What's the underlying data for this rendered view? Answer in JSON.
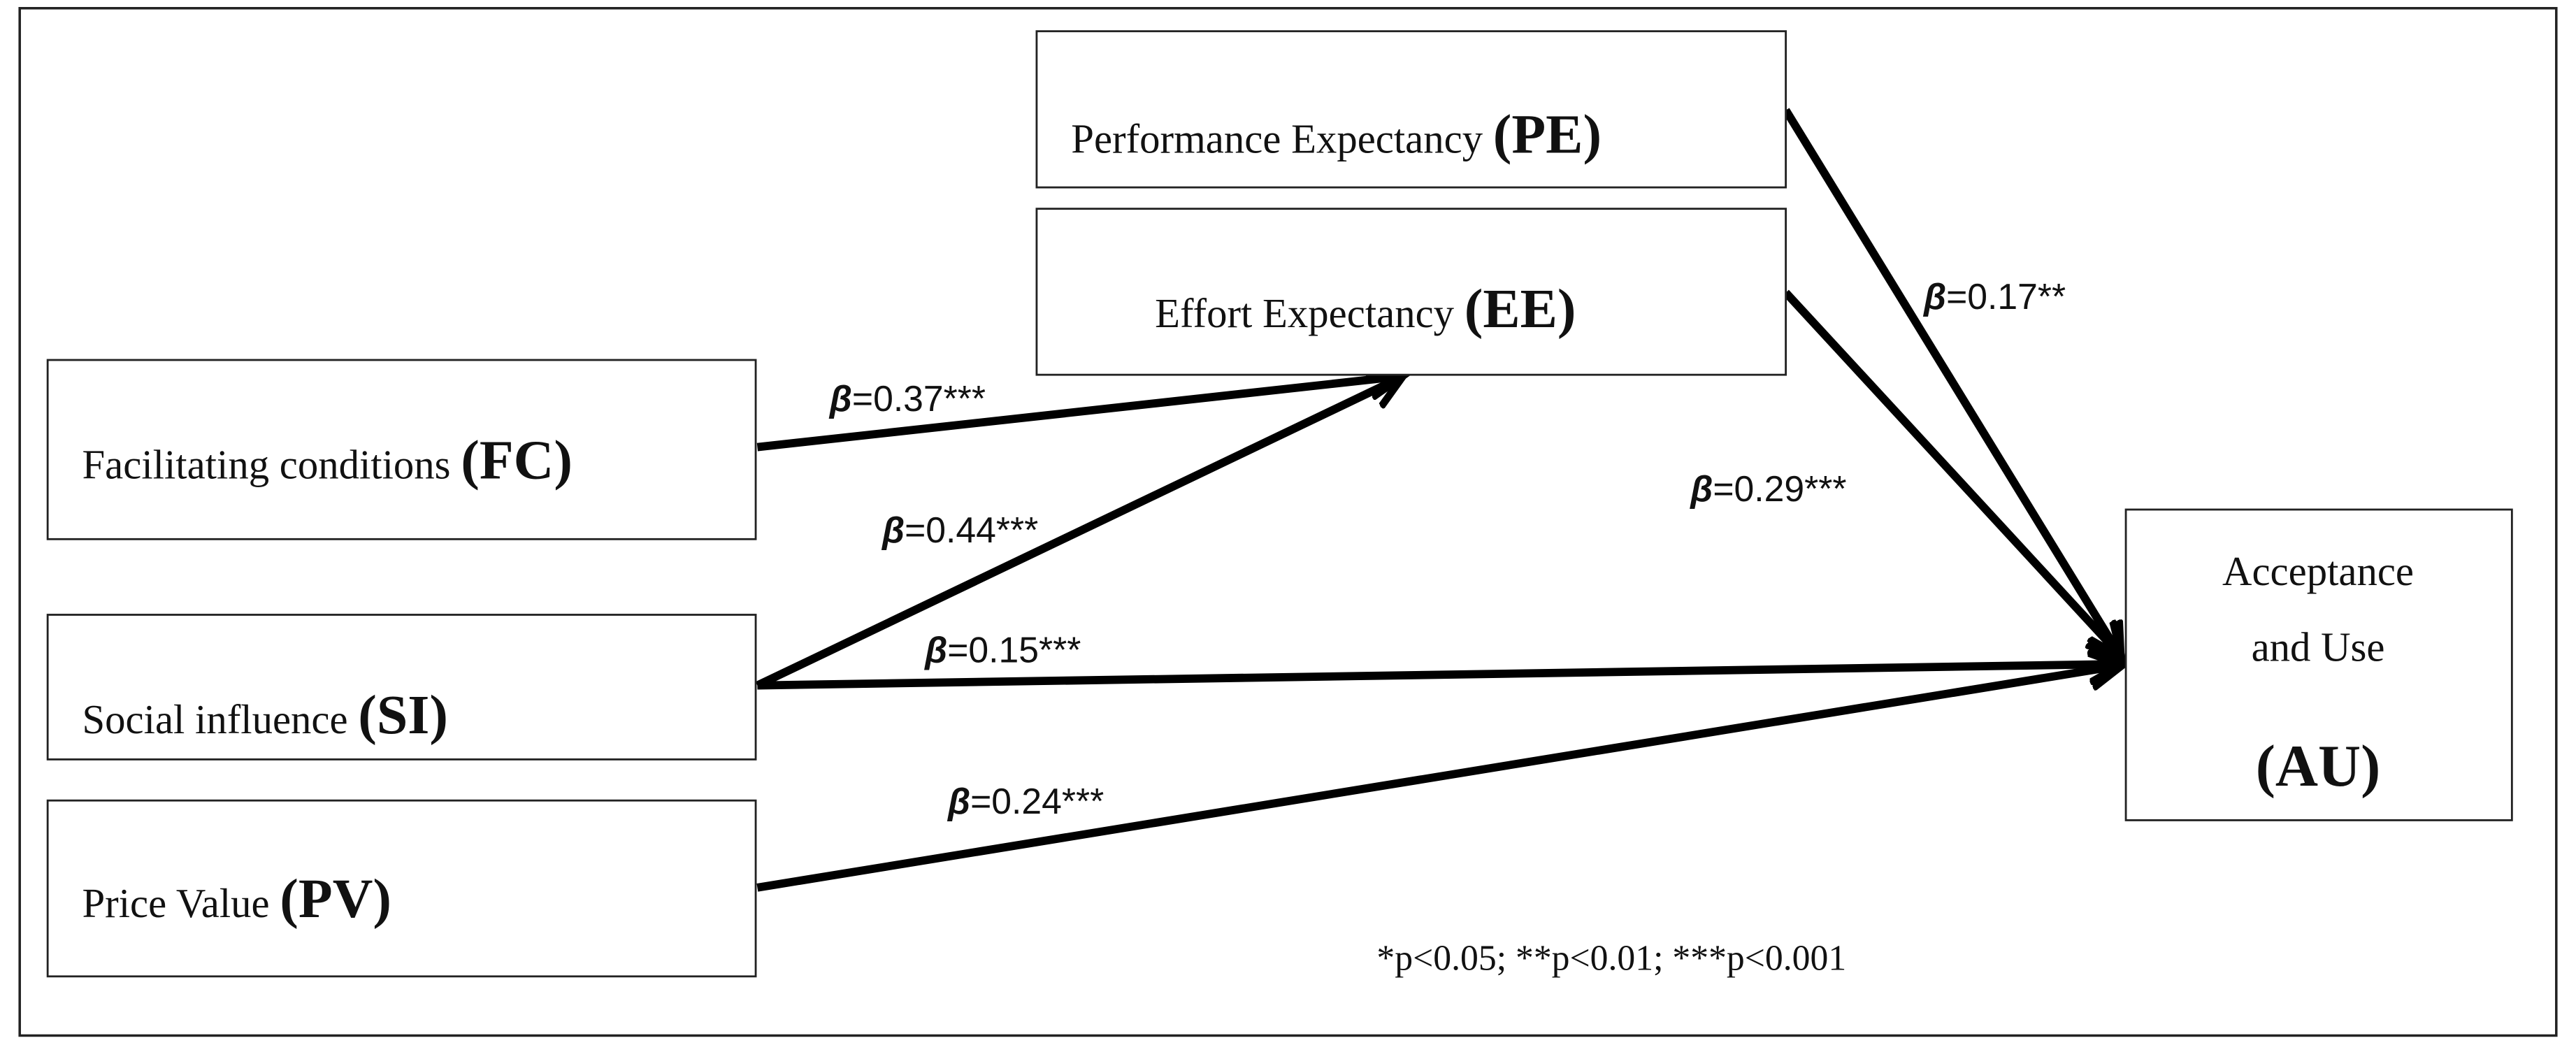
{
  "nodes": [
    {
      "name": "Performance Expectancy",
      "abbr": "(PE)"
    },
    {
      "name": "Effort Expectancy",
      "abbr": "(EE)"
    },
    {
      "name": "Facilitating conditions",
      "abbr": "(FC)"
    },
    {
      "name": "Social influence",
      "abbr": "(SI)"
    },
    {
      "name": "Price Value",
      "abbr": "(PV)"
    },
    {
      "name": [
        "Acceptance",
        "and Use"
      ],
      "abbr": "(AU)"
    }
  ],
  "edges": [
    {
      "symbol": "β",
      "text": "=0.37***"
    },
    {
      "symbol": "β",
      "text": "=0.44***"
    },
    {
      "symbol": "β",
      "text": "=0.15***"
    },
    {
      "symbol": "β",
      "text": "=0.24***"
    },
    {
      "symbol": "β",
      "text": "=0.17**"
    },
    {
      "symbol": "β",
      "text": "=0.29***"
    }
  ],
  "footnote": "*p<0.05; **p<0.01; ***p<0.001"
}
